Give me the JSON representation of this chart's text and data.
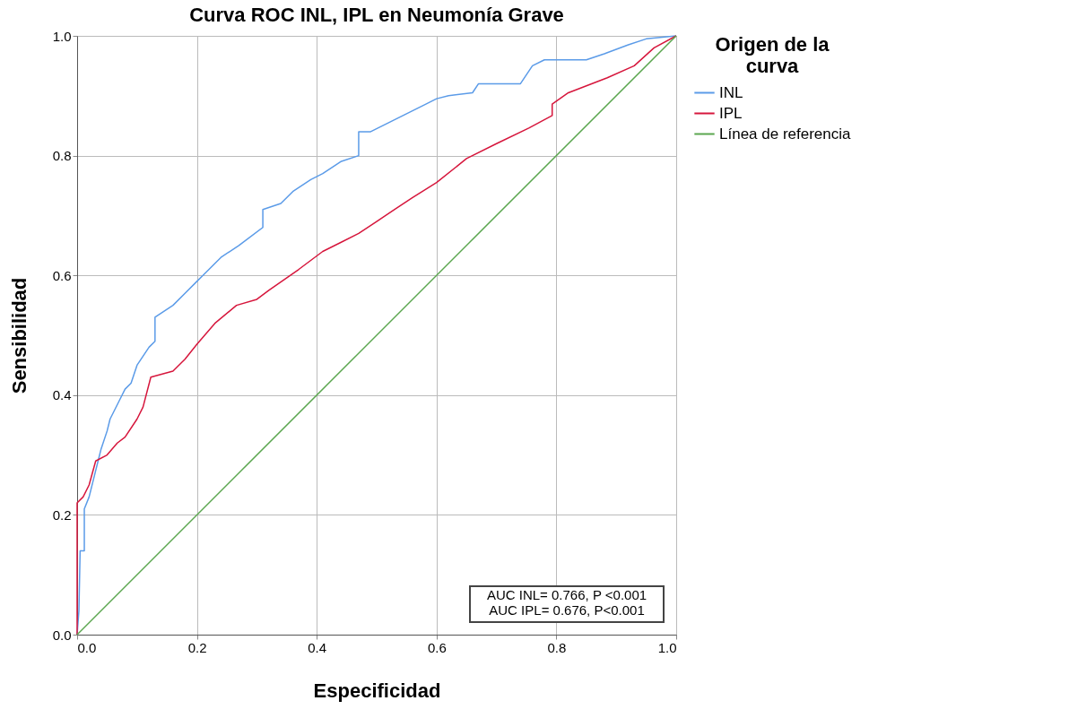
{
  "chart_data": {
    "type": "line",
    "title": "Curva ROC INL, IPL en Neumonía Grave",
    "xlabel": "Especificidad",
    "ylabel": "Sensibilidad",
    "legend_title": "Origen de la curva",
    "legend": "top right",
    "grid": true,
    "xlim": [
      0,
      1
    ],
    "ylim": [
      0,
      1
    ],
    "xticks": [
      {
        "value": 0,
        "label": "0.0"
      },
      {
        "value": 0.2,
        "label": "0.2"
      },
      {
        "value": 0.4,
        "label": "0.4"
      },
      {
        "value": 0.6,
        "label": "0.6"
      },
      {
        "value": 0.8,
        "label": "0.8"
      },
      {
        "value": 1,
        "label": "1.0"
      }
    ],
    "yticks": [
      {
        "value": 0,
        "label": "0.0"
      },
      {
        "value": 0.2,
        "label": "0.2"
      },
      {
        "value": 0.4,
        "label": "0.4"
      },
      {
        "value": 0.6,
        "label": "0.6"
      },
      {
        "value": 0.8,
        "label": "0.8"
      },
      {
        "value": 1,
        "label": "1.0"
      }
    ],
    "series": [
      {
        "name": "INL",
        "color": "#5b9be8",
        "x": [
          0,
          0.003,
          0.005,
          0.012,
          0.012,
          0.02,
          0.03,
          0.04,
          0.05,
          0.055,
          0.07,
          0.08,
          0.09,
          0.1,
          0.12,
          0.13,
          0.13,
          0.16,
          0.18,
          0.2,
          0.21,
          0.24,
          0.27,
          0.31,
          0.31,
          0.34,
          0.36,
          0.39,
          0.41,
          0.44,
          0.47,
          0.47,
          0.49,
          0.52,
          0.55,
          0.58,
          0.6,
          0.62,
          0.66,
          0.67,
          0.74,
          0.76,
          0.78,
          0.85,
          0.88,
          0.92,
          0.95,
          1
        ],
        "values": [
          0,
          0.04,
          0.14,
          0.14,
          0.21,
          0.23,
          0.27,
          0.31,
          0.34,
          0.36,
          0.39,
          0.41,
          0.42,
          0.45,
          0.48,
          0.49,
          0.53,
          0.55,
          0.57,
          0.59,
          0.6,
          0.63,
          0.65,
          0.68,
          0.71,
          0.72,
          0.74,
          0.76,
          0.77,
          0.79,
          0.8,
          0.84,
          0.84,
          0.855,
          0.87,
          0.885,
          0.895,
          0.9,
          0.905,
          0.92,
          0.92,
          0.95,
          0.96,
          0.96,
          0.97,
          0.985,
          0.995,
          1
        ]
      },
      {
        "name": "IPL",
        "color": "#d6163c",
        "x": [
          0,
          0,
          0.01,
          0.02,
          0.031,
          0.05,
          0.067,
          0.08,
          0.1,
          0.11,
          0.123,
          0.16,
          0.18,
          0.2,
          0.23,
          0.266,
          0.3,
          0.32,
          0.37,
          0.41,
          0.44,
          0.47,
          0.5,
          0.53,
          0.56,
          0.6,
          0.65,
          0.7,
          0.754,
          0.793,
          0.793,
          0.82,
          0.885,
          0.93,
          0.963,
          1
        ],
        "values": [
          0,
          0.22,
          0.23,
          0.25,
          0.29,
          0.3,
          0.32,
          0.33,
          0.36,
          0.38,
          0.43,
          0.44,
          0.46,
          0.485,
          0.52,
          0.55,
          0.56,
          0.575,
          0.61,
          0.64,
          0.655,
          0.67,
          0.69,
          0.71,
          0.73,
          0.755,
          0.795,
          0.82,
          0.846,
          0.867,
          0.886,
          0.905,
          0.93,
          0.95,
          0.98,
          1
        ]
      },
      {
        "name": "Línea de referencia",
        "color": "#5aa64f",
        "x": [
          0,
          1
        ],
        "values": [
          0,
          1
        ]
      }
    ],
    "annotations": [
      "AUC INL= 0.766, P <0.001",
      "AUC IPL= 0.676, P<0.001"
    ]
  }
}
